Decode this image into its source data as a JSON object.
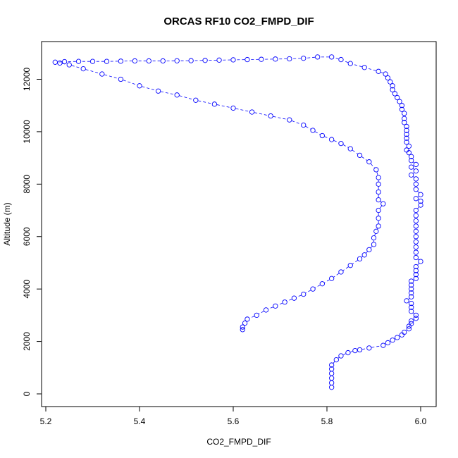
{
  "chart_data": {
    "type": "scatter",
    "title": "ORCAS RF10 CO2_FMPD_DIF",
    "xlabel": "CO2_FMPD_DIF",
    "ylabel": "Altitude (m)",
    "xlim": [
      5.2,
      6.0
    ],
    "ylim": [
      0,
      12900
    ],
    "xticks": [
      5.2,
      5.4,
      5.6,
      5.8,
      6.0
    ],
    "xtick_labels": [
      "5.2",
      "5.4",
      "5.6",
      "5.8",
      "6.0"
    ],
    "yticks": [
      0,
      2000,
      4000,
      6000,
      8000,
      10000,
      12000
    ],
    "ytick_labels": [
      "0",
      "2000",
      "4000",
      "6000",
      "8000",
      "10000",
      "12000"
    ],
    "grid": false,
    "legend": "none",
    "marker": "open circle",
    "marker_color": "#0000ff",
    "connecting_lines": "dashed",
    "series": [
      {
        "points": [
          [
            5.81,
            250
          ],
          [
            5.81,
            420
          ],
          [
            5.81,
            600
          ],
          [
            5.81,
            780
          ],
          [
            5.81,
            950
          ],
          [
            5.81,
            1100
          ],
          [
            5.82,
            1300
          ],
          [
            5.83,
            1450
          ],
          [
            5.845,
            1570
          ],
          [
            5.86,
            1650
          ],
          [
            5.87,
            1680
          ],
          [
            5.89,
            1750
          ],
          [
            5.92,
            1850
          ],
          [
            5.93,
            1950
          ],
          [
            5.94,
            2050
          ],
          [
            5.95,
            2150
          ],
          [
            5.96,
            2250
          ],
          [
            5.965,
            2350
          ],
          [
            5.975,
            2480
          ],
          [
            5.975,
            2580
          ],
          [
            5.98,
            2680
          ],
          [
            5.98,
            2780
          ],
          [
            5.99,
            2880
          ],
          [
            5.99,
            3000
          ],
          [
            5.98,
            3150
          ],
          [
            5.98,
            3300
          ],
          [
            5.98,
            3450
          ],
          [
            5.97,
            3550
          ],
          [
            5.98,
            3700
          ],
          [
            5.98,
            3850
          ],
          [
            5.98,
            4000
          ],
          [
            5.98,
            4150
          ],
          [
            5.98,
            4300
          ],
          [
            5.99,
            4400
          ],
          [
            5.99,
            4550
          ],
          [
            5.99,
            4700
          ],
          [
            5.99,
            4850
          ],
          [
            6.0,
            5050
          ],
          [
            5.99,
            5200
          ],
          [
            5.99,
            5400
          ],
          [
            5.99,
            5600
          ],
          [
            5.99,
            5800
          ],
          [
            5.99,
            6000
          ],
          [
            5.99,
            6200
          ],
          [
            5.99,
            6400
          ],
          [
            5.99,
            6600
          ],
          [
            5.99,
            6800
          ],
          [
            5.99,
            7000
          ],
          [
            6.0,
            7200
          ],
          [
            6.0,
            7350
          ],
          [
            5.99,
            7450
          ],
          [
            6.0,
            7600
          ],
          [
            5.99,
            7800
          ],
          [
            5.99,
            8000
          ],
          [
            5.99,
            8200
          ],
          [
            5.98,
            8350
          ],
          [
            5.99,
            8500
          ],
          [
            5.98,
            8650
          ],
          [
            5.99,
            8750
          ],
          [
            5.98,
            8900
          ],
          [
            5.98,
            9050
          ],
          [
            5.975,
            9200
          ],
          [
            5.97,
            9300
          ],
          [
            5.975,
            9450
          ],
          [
            5.97,
            9600
          ],
          [
            5.97,
            9750
          ],
          [
            5.97,
            9900
          ],
          [
            5.97,
            10050
          ],
          [
            5.97,
            10200
          ],
          [
            5.965,
            10350
          ],
          [
            5.965,
            10500
          ],
          [
            5.965,
            10700
          ],
          [
            5.96,
            10850
          ],
          [
            5.96,
            11000
          ],
          [
            5.955,
            11150
          ],
          [
            5.95,
            11300
          ],
          [
            5.945,
            11450
          ],
          [
            5.94,
            11600
          ],
          [
            5.94,
            11750
          ],
          [
            5.935,
            11900
          ],
          [
            5.93,
            12050
          ],
          [
            5.925,
            12200
          ],
          [
            5.91,
            12300
          ],
          [
            5.88,
            12450
          ],
          [
            5.85,
            12600
          ],
          [
            5.83,
            12750
          ],
          [
            5.81,
            12850
          ],
          [
            5.78,
            12850
          ],
          [
            5.75,
            12800
          ],
          [
            5.72,
            12780
          ],
          [
            5.69,
            12770
          ],
          [
            5.66,
            12760
          ],
          [
            5.63,
            12750
          ],
          [
            5.6,
            12740
          ],
          [
            5.57,
            12730
          ],
          [
            5.54,
            12720
          ],
          [
            5.51,
            12710
          ],
          [
            5.48,
            12705
          ],
          [
            5.45,
            12700
          ],
          [
            5.42,
            12700
          ],
          [
            5.39,
            12700
          ],
          [
            5.36,
            12690
          ],
          [
            5.33,
            12680
          ],
          [
            5.3,
            12680
          ],
          [
            5.27,
            12680
          ],
          [
            5.24,
            12670
          ],
          [
            5.22,
            12650
          ],
          [
            5.23,
            12620
          ],
          [
            5.25,
            12550
          ],
          [
            5.28,
            12400
          ],
          [
            5.32,
            12200
          ],
          [
            5.36,
            12000
          ],
          [
            5.4,
            11750
          ],
          [
            5.44,
            11550
          ],
          [
            5.48,
            11400
          ],
          [
            5.52,
            11200
          ],
          [
            5.56,
            11050
          ],
          [
            5.6,
            10900
          ],
          [
            5.64,
            10750
          ],
          [
            5.68,
            10600
          ],
          [
            5.72,
            10450
          ],
          [
            5.75,
            10250
          ],
          [
            5.77,
            10050
          ],
          [
            5.79,
            9850
          ],
          [
            5.81,
            9700
          ],
          [
            5.83,
            9550
          ],
          [
            5.85,
            9350
          ],
          [
            5.87,
            9100
          ],
          [
            5.89,
            8850
          ],
          [
            5.905,
            8550
          ],
          [
            5.91,
            8250
          ],
          [
            5.91,
            8000
          ],
          [
            5.91,
            7700
          ],
          [
            5.91,
            7400
          ],
          [
            5.92,
            7250
          ],
          [
            5.91,
            7000
          ],
          [
            5.91,
            6700
          ],
          [
            5.91,
            6400
          ],
          [
            5.905,
            6200
          ],
          [
            5.9,
            5950
          ],
          [
            5.9,
            5700
          ],
          [
            5.89,
            5500
          ],
          [
            5.88,
            5300
          ],
          [
            5.87,
            5150
          ],
          [
            5.85,
            4900
          ],
          [
            5.83,
            4650
          ],
          [
            5.81,
            4400
          ],
          [
            5.79,
            4200
          ],
          [
            5.77,
            4000
          ],
          [
            5.75,
            3800
          ],
          [
            5.73,
            3650
          ],
          [
            5.71,
            3500
          ],
          [
            5.69,
            3350
          ],
          [
            5.67,
            3200
          ],
          [
            5.65,
            3000
          ],
          [
            5.63,
            2850
          ],
          [
            5.625,
            2700
          ],
          [
            5.62,
            2550
          ],
          [
            5.62,
            2450
          ]
        ]
      }
    ]
  }
}
